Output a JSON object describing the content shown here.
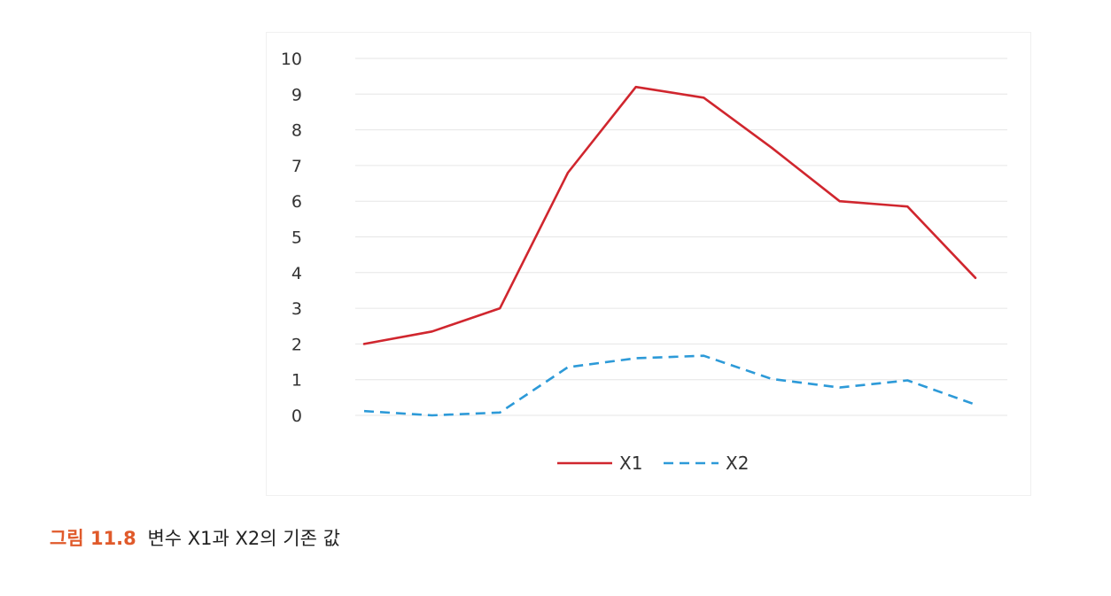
{
  "chart_data": {
    "type": "line",
    "title": "",
    "xlabel": "",
    "ylabel": "",
    "ylim": [
      0,
      10
    ],
    "yticks": [
      "0",
      "1",
      "2",
      "3",
      "4",
      "5",
      "6",
      "7",
      "8",
      "9",
      "10"
    ],
    "x": [
      1,
      2,
      3,
      4,
      5,
      6,
      7,
      8,
      9,
      10
    ],
    "grid": true,
    "legend_position": "bottom-center",
    "series": [
      {
        "name": "X1",
        "color": "#d0262e",
        "style": "solid",
        "values": [
          2.0,
          2.35,
          3.0,
          6.8,
          9.2,
          8.9,
          7.5,
          6.0,
          5.85,
          3.85
        ]
      },
      {
        "name": "X2",
        "color": "#2d9ad8",
        "style": "dashed",
        "values": [
          0.12,
          0.0,
          0.08,
          1.35,
          1.6,
          1.67,
          1.02,
          0.78,
          0.98,
          0.3
        ]
      }
    ]
  },
  "caption": {
    "label": "그림 11.8",
    "text": "변수 X1과 X2의 기존 값",
    "label_color": "#e05a2b"
  }
}
